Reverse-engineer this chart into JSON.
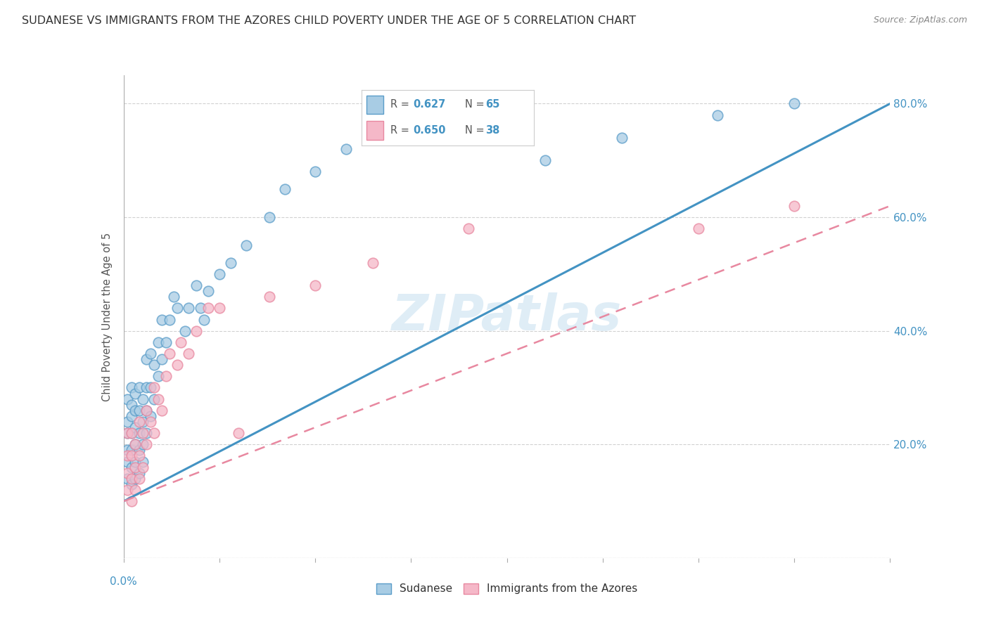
{
  "title": "SUDANESE VS IMMIGRANTS FROM THE AZORES CHILD POVERTY UNDER THE AGE OF 5 CORRELATION CHART",
  "source": "Source: ZipAtlas.com",
  "ylabel": "Child Poverty Under the Age of 5",
  "ytick_values": [
    0.0,
    0.2,
    0.4,
    0.6,
    0.8
  ],
  "ytick_labels": [
    "",
    "20.0%",
    "40.0%",
    "60.0%",
    "80.0%"
  ],
  "xlim": [
    0,
    0.2
  ],
  "ylim": [
    0,
    0.85
  ],
  "watermark": "ZIPatlas",
  "color_blue": "#a8cce4",
  "color_blue_dark": "#5b9dc9",
  "color_blue_line": "#4393c3",
  "color_pink": "#f5b8c8",
  "color_pink_dark": "#e888a0",
  "color_pink_line": "#e888a0",
  "color_axis": "#4393c3",
  "color_grid": "#cccccc",
  "sudanese_x": [
    0.001,
    0.001,
    0.001,
    0.001,
    0.001,
    0.001,
    0.002,
    0.002,
    0.002,
    0.002,
    0.002,
    0.002,
    0.002,
    0.003,
    0.003,
    0.003,
    0.003,
    0.003,
    0.003,
    0.004,
    0.004,
    0.004,
    0.004,
    0.004,
    0.005,
    0.005,
    0.005,
    0.005,
    0.006,
    0.006,
    0.006,
    0.006,
    0.007,
    0.007,
    0.007,
    0.008,
    0.008,
    0.009,
    0.009,
    0.01,
    0.01,
    0.011,
    0.012,
    0.013,
    0.014,
    0.016,
    0.017,
    0.019,
    0.02,
    0.021,
    0.022,
    0.025,
    0.028,
    0.032,
    0.038,
    0.042,
    0.05,
    0.058,
    0.068,
    0.08,
    0.095,
    0.11,
    0.13,
    0.155,
    0.175
  ],
  "sudanese_y": [
    0.14,
    0.17,
    0.19,
    0.22,
    0.24,
    0.28,
    0.13,
    0.16,
    0.19,
    0.22,
    0.25,
    0.27,
    0.3,
    0.14,
    0.17,
    0.2,
    0.23,
    0.26,
    0.29,
    0.15,
    0.19,
    0.22,
    0.26,
    0.3,
    0.17,
    0.2,
    0.24,
    0.28,
    0.22,
    0.26,
    0.3,
    0.35,
    0.25,
    0.3,
    0.36,
    0.28,
    0.34,
    0.32,
    0.38,
    0.35,
    0.42,
    0.38,
    0.42,
    0.46,
    0.44,
    0.4,
    0.44,
    0.48,
    0.44,
    0.42,
    0.47,
    0.5,
    0.52,
    0.55,
    0.6,
    0.65,
    0.68,
    0.72,
    0.76,
    0.79,
    0.75,
    0.7,
    0.74,
    0.78,
    0.8
  ],
  "azores_x": [
    0.001,
    0.001,
    0.001,
    0.001,
    0.002,
    0.002,
    0.002,
    0.002,
    0.003,
    0.003,
    0.003,
    0.004,
    0.004,
    0.004,
    0.005,
    0.005,
    0.006,
    0.006,
    0.007,
    0.008,
    0.008,
    0.009,
    0.01,
    0.011,
    0.012,
    0.014,
    0.015,
    0.017,
    0.019,
    0.022,
    0.025,
    0.03,
    0.038,
    0.05,
    0.065,
    0.09,
    0.15,
    0.175
  ],
  "azores_y": [
    0.12,
    0.15,
    0.18,
    0.22,
    0.1,
    0.14,
    0.18,
    0.22,
    0.12,
    0.16,
    0.2,
    0.14,
    0.18,
    0.24,
    0.16,
    0.22,
    0.2,
    0.26,
    0.24,
    0.22,
    0.3,
    0.28,
    0.26,
    0.32,
    0.36,
    0.34,
    0.38,
    0.36,
    0.4,
    0.44,
    0.44,
    0.22,
    0.46,
    0.48,
    0.52,
    0.58,
    0.58,
    0.62
  ]
}
